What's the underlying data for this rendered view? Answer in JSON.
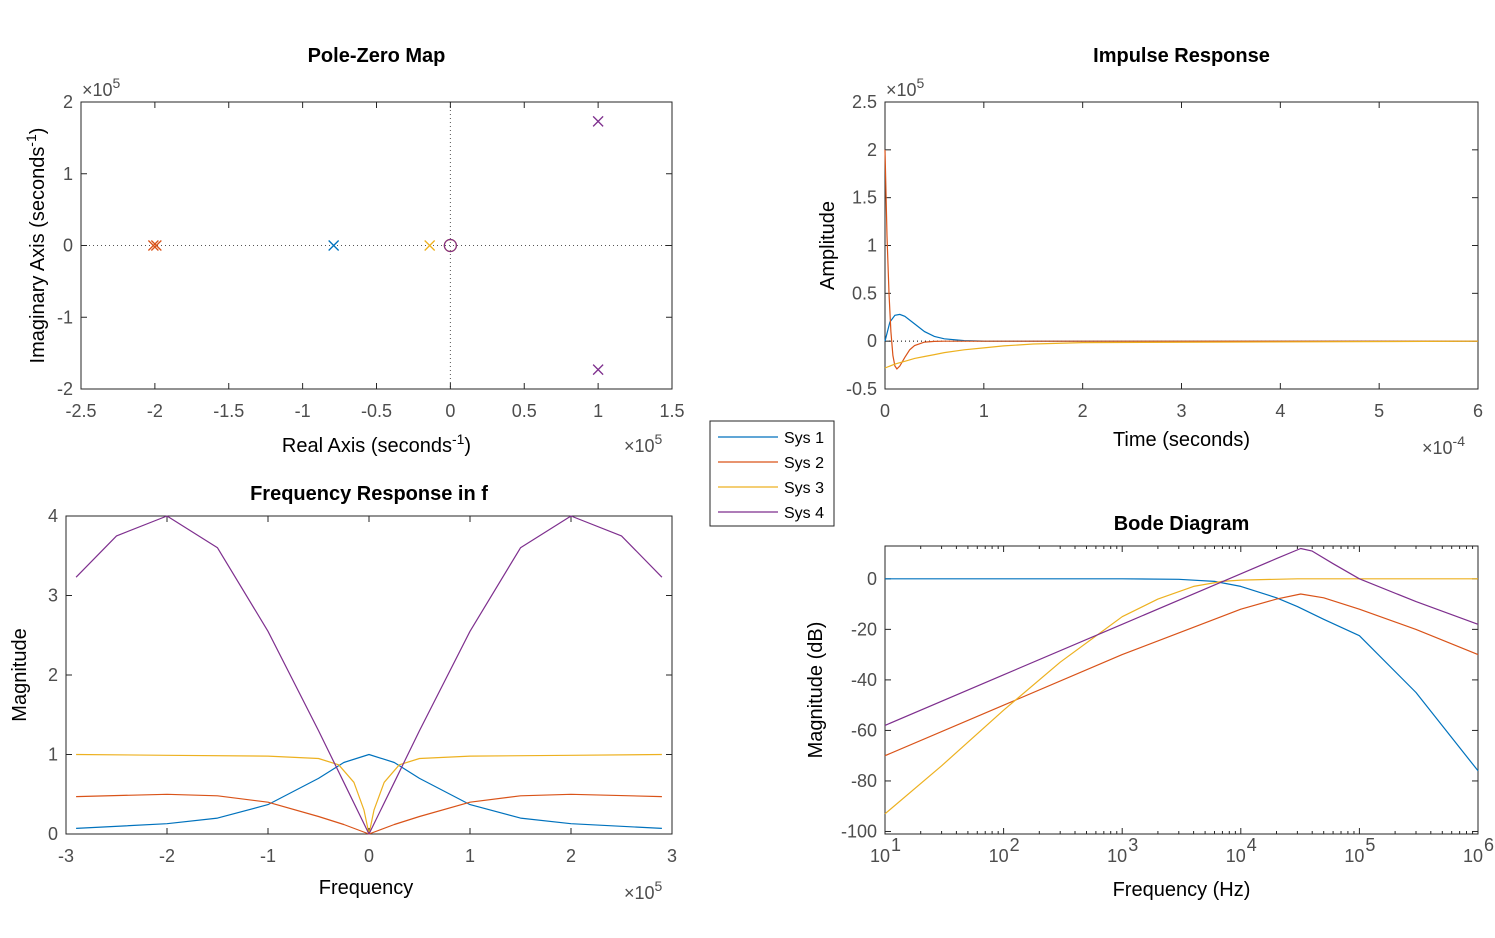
{
  "colors": {
    "Sys 1": "#0072BD",
    "Sys 2": "#D95319",
    "Sys 3": "#EDB120",
    "Sys 4": "#7E2F8E"
  },
  "legend": {
    "entries": [
      "Sys 1",
      "Sys 2",
      "Sys 3",
      "Sys 4"
    ],
    "placement": "center"
  },
  "chart_data": [
    {
      "type": "scatter",
      "title": "Pole-Zero Map",
      "xlabel": "Real Axis (seconds",
      "xlabel_sup": "-1",
      "xlabel_end": ")",
      "ylabel": "Imaginary Axis (seconds",
      "ylabel_sup": "-1",
      "ylabel_end": ")",
      "xlim": [
        -2.5,
        1.5
      ],
      "ylim": [
        -2,
        2
      ],
      "xticks": [
        -2.5,
        -2,
        -1.5,
        -1,
        -0.5,
        0,
        0.5,
        1,
        1.5
      ],
      "xticklabels": [
        "-2.5",
        "-2",
        "-1.5",
        "-1",
        "-0.5",
        "0",
        "0.5",
        "1",
        "1.5"
      ],
      "yticks": [
        -2,
        -1,
        0,
        1,
        2
      ],
      "yticklabels": [
        "-2",
        "-1",
        "0",
        "1",
        "2"
      ],
      "x_exponent": "×10",
      "x_exponent_power": "5",
      "y_exponent": "×10",
      "y_exponent_power": "5",
      "poles": [
        {
          "series": "Sys 1",
          "re": -0.79,
          "im": 0
        },
        {
          "series": "Sys 2",
          "re": -2.01,
          "im": 0
        },
        {
          "series": "Sys 2",
          "re": -1.99,
          "im": 0
        },
        {
          "series": "Sys 3",
          "re": -0.14,
          "im": 0
        },
        {
          "series": "Sys 4",
          "re": 1.0,
          "im": 1.73
        },
        {
          "series": "Sys 4",
          "re": 1.0,
          "im": -1.73
        }
      ],
      "zeros": [
        {
          "series": "Sys 2",
          "re": 0,
          "im": 0
        },
        {
          "series": "Sys 3",
          "re": 0,
          "im": 0
        },
        {
          "series": "Sys 4",
          "re": 0,
          "im": 0
        }
      ]
    },
    {
      "type": "line",
      "title": "Impulse Response",
      "xlabel": "Time (seconds)",
      "ylabel": "Amplitude",
      "xlim": [
        0,
        6
      ],
      "ylim": [
        -0.5,
        2.5
      ],
      "xticks": [
        0,
        1,
        2,
        3,
        4,
        5,
        6
      ],
      "xticklabels": [
        "0",
        "1",
        "2",
        "3",
        "4",
        "5",
        "6"
      ],
      "yticks": [
        -0.5,
        0,
        0.5,
        1,
        1.5,
        2,
        2.5
      ],
      "yticklabels": [
        "-0.5",
        "0",
        "0.5",
        "1",
        "1.5",
        "2",
        "2.5"
      ],
      "x_exponent": "×10",
      "x_exponent_power": "-4",
      "y_exponent": "×10",
      "y_exponent_power": "5",
      "series": [
        {
          "name": "Sys 1",
          "x": [
            0,
            0.05,
            0.1,
            0.15,
            0.2,
            0.3,
            0.4,
            0.5,
            0.6,
            0.8,
            1.0,
            1.5,
            2,
            6
          ],
          "y": [
            0,
            0.2,
            0.27,
            0.28,
            0.26,
            0.18,
            0.1,
            0.05,
            0.025,
            0.006,
            0.001,
            0,
            0,
            0
          ]
        },
        {
          "name": "Sys 2",
          "x": [
            0,
            0.02,
            0.04,
            0.06,
            0.08,
            0.1,
            0.12,
            0.15,
            0.2,
            0.25,
            0.3,
            0.4,
            0.5,
            0.6,
            6
          ],
          "y": [
            2.0,
            1.1,
            0.5,
            0.1,
            -0.15,
            -0.26,
            -0.29,
            -0.26,
            -0.17,
            -0.09,
            -0.045,
            -0.01,
            -0.002,
            0,
            0
          ]
        },
        {
          "name": "Sys 3",
          "x": [
            0,
            0.1,
            0.2,
            0.3,
            0.4,
            0.5,
            0.6,
            0.8,
            1.0,
            1.2,
            1.5,
            2,
            6
          ],
          "y": [
            -0.28,
            -0.24,
            -0.21,
            -0.18,
            -0.16,
            -0.14,
            -0.12,
            -0.09,
            -0.07,
            -0.05,
            -0.03,
            -0.015,
            0
          ]
        }
      ]
    },
    {
      "type": "line",
      "title": "Frequency Response in f",
      "xlabel": "Frequency",
      "ylabel": "Magnitude",
      "xlim": [
        -3,
        3
      ],
      "ylim": [
        0,
        4
      ],
      "xticks": [
        -3,
        -2,
        -1,
        0,
        1,
        2,
        3
      ],
      "xticklabels": [
        "-3",
        "-2",
        "-1",
        "0",
        "1",
        "2",
        "3"
      ],
      "yticks": [
        0,
        1,
        2,
        3,
        4
      ],
      "yticklabels": [
        "0",
        "1",
        "2",
        "3",
        "4"
      ],
      "x_exponent": "×10",
      "x_exponent_power": "5",
      "series": [
        {
          "name": "Sys 1",
          "x": [
            -2.9,
            -2,
            -1.5,
            -1,
            -0.5,
            -0.25,
            0,
            0.25,
            0.5,
            1,
            1.5,
            2,
            2.9
          ],
          "y": [
            0.07,
            0.13,
            0.2,
            0.37,
            0.7,
            0.9,
            1.0,
            0.9,
            0.7,
            0.37,
            0.2,
            0.13,
            0.07
          ]
        },
        {
          "name": "Sys 2",
          "x": [
            -2.9,
            -2,
            -1.5,
            -1,
            -0.5,
            -0.25,
            0,
            0.25,
            0.5,
            1,
            1.5,
            2,
            2.9
          ],
          "y": [
            0.47,
            0.5,
            0.48,
            0.4,
            0.22,
            0.12,
            0.0,
            0.12,
            0.22,
            0.4,
            0.48,
            0.5,
            0.47
          ]
        },
        {
          "name": "Sys 3",
          "x": [
            -2.9,
            -2,
            -1,
            -0.5,
            -0.3,
            -0.15,
            -0.05,
            0,
            0.05,
            0.15,
            0.3,
            0.5,
            1,
            2,
            2.9
          ],
          "y": [
            1.0,
            0.99,
            0.98,
            0.95,
            0.87,
            0.65,
            0.3,
            0.0,
            0.3,
            0.65,
            0.87,
            0.95,
            0.98,
            0.99,
            1.0
          ]
        },
        {
          "name": "Sys 4",
          "x": [
            -2.9,
            -2.5,
            -2,
            -1.5,
            -1,
            -0.5,
            -0.25,
            0,
            0.25,
            0.5,
            1,
            1.5,
            2,
            2.5,
            2.9
          ],
          "y": [
            3.23,
            3.75,
            4.0,
            3.6,
            2.55,
            1.3,
            0.65,
            0.0,
            0.65,
            1.3,
            2.55,
            3.6,
            4.0,
            3.75,
            3.23
          ]
        }
      ]
    },
    {
      "type": "line",
      "title": "Bode Diagram",
      "xlabel": "Frequency  (Hz)",
      "ylabel": "Magnitude (dB)",
      "xscale": "log",
      "xlim": [
        10,
        1000000
      ],
      "ylim": [
        -101,
        13
      ],
      "xticks": [
        10,
        100,
        1000,
        10000,
        100000,
        1000000
      ],
      "xticklabels": [
        "10",
        "10",
        "10",
        "10",
        "10",
        "10"
      ],
      "xtickpowers": [
        "1",
        "2",
        "3",
        "4",
        "5",
        "6"
      ],
      "yticks": [
        -100,
        -80,
        -60,
        -40,
        -20,
        0
      ],
      "yticklabels": [
        "-100",
        "-80",
        "-60",
        "-40",
        "-20",
        "0"
      ],
      "series": [
        {
          "name": "Sys 1",
          "x": [
            10,
            100,
            1000,
            3000,
            6000,
            10000,
            20000,
            30000,
            50000,
            100000,
            300000,
            1000000
          ],
          "y": [
            0,
            0,
            0,
            -0.2,
            -1,
            -3,
            -7.5,
            -11,
            -16,
            -22.5,
            -45,
            -76
          ]
        },
        {
          "name": "Sys 2",
          "x": [
            10,
            100,
            1000,
            10000,
            20000,
            32000,
            50000,
            100000,
            300000,
            1000000
          ],
          "y": [
            -70,
            -50,
            -30,
            -12,
            -8,
            -6,
            -7.5,
            -12,
            -20,
            -30
          ]
        },
        {
          "name": "Sys 3",
          "x": [
            10,
            30,
            100,
            300,
            1000,
            2000,
            4000,
            7000,
            10000,
            30000,
            100000,
            1000000
          ],
          "y": [
            -93,
            -74,
            -52,
            -33,
            -15,
            -8,
            -3,
            -1,
            -0.5,
            0,
            0,
            0
          ]
        },
        {
          "name": "Sys 4",
          "x": [
            10,
            100,
            1000,
            10000,
            20000,
            32000,
            40000,
            60000,
            100000,
            300000,
            1000000
          ],
          "y": [
            -58,
            -38,
            -18,
            2,
            8,
            12,
            11,
            6,
            0,
            -9,
            -18
          ]
        }
      ]
    }
  ]
}
